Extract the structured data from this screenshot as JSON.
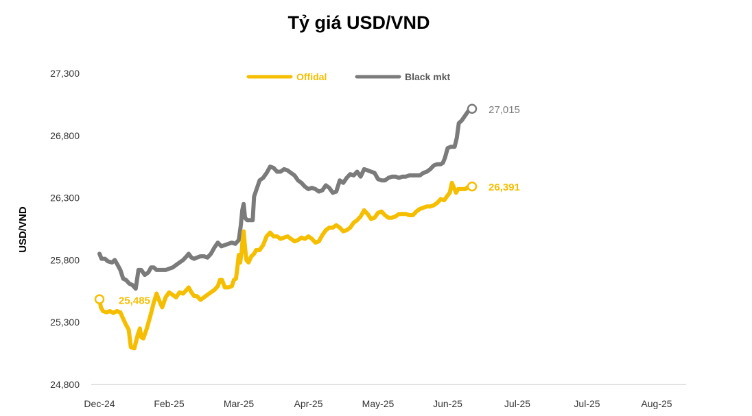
{
  "chart_data": {
    "type": "line",
    "title": "Tỷ giá USD/VND",
    "ylabel": "USD/VND",
    "ylim": [
      24800,
      27300
    ],
    "yticks": [
      "24,800",
      "25,300",
      "25,800",
      "26,300",
      "26,800",
      "27,300"
    ],
    "ytick_values": [
      24800,
      25300,
      25800,
      26300,
      26800,
      27300
    ],
    "xticks": [
      "Dec-24",
      "Feb-25",
      "Mar-25",
      "Apr-25",
      "May-25",
      "Jun-25",
      "Jul-25",
      "Jul-25",
      "Aug-25"
    ],
    "legend_position": "top-center",
    "grid": false,
    "series": [
      {
        "name": "Offidal",
        "color": "#F5BE00",
        "start_label": "25,485",
        "end_label": "26,391",
        "points": [
          [
            0,
            25485
          ],
          [
            0.02,
            25420
          ],
          [
            0.05,
            25390
          ],
          [
            0.1,
            25380
          ],
          [
            0.15,
            25390
          ],
          [
            0.2,
            25375
          ],
          [
            0.25,
            25390
          ],
          [
            0.3,
            25380
          ],
          [
            0.33,
            25340
          ],
          [
            0.38,
            25280
          ],
          [
            0.42,
            25240
          ],
          [
            0.45,
            25100
          ],
          [
            0.5,
            25090
          ],
          [
            0.55,
            25200
          ],
          [
            0.58,
            25250
          ],
          [
            0.6,
            25180
          ],
          [
            0.63,
            25170
          ],
          [
            0.68,
            25250
          ],
          [
            0.73,
            25350
          ],
          [
            0.78,
            25460
          ],
          [
            0.82,
            25530
          ],
          [
            0.86,
            25470
          ],
          [
            0.9,
            25420
          ],
          [
            0.95,
            25500
          ],
          [
            1.0,
            25540
          ],
          [
            1.05,
            25520
          ],
          [
            1.1,
            25500
          ],
          [
            1.15,
            25540
          ],
          [
            1.2,
            25530
          ],
          [
            1.25,
            25560
          ],
          [
            1.28,
            25580
          ],
          [
            1.32,
            25540
          ],
          [
            1.36,
            25510
          ],
          [
            1.4,
            25510
          ],
          [
            1.45,
            25480
          ],
          [
            1.5,
            25500
          ],
          [
            1.55,
            25520
          ],
          [
            1.6,
            25540
          ],
          [
            1.65,
            25560
          ],
          [
            1.7,
            25590
          ],
          [
            1.73,
            25640
          ],
          [
            1.76,
            25640
          ],
          [
            1.8,
            25580
          ],
          [
            1.85,
            25580
          ],
          [
            1.9,
            25590
          ],
          [
            1.93,
            25640
          ],
          [
            1.96,
            25650
          ],
          [
            1.98,
            25740
          ],
          [
            2.0,
            25840
          ],
          [
            2.02,
            25780
          ],
          [
            2.04,
            25860
          ],
          [
            2.05,
            25930
          ],
          [
            2.07,
            26030
          ],
          [
            2.09,
            25900
          ],
          [
            2.11,
            25800
          ],
          [
            2.14,
            25780
          ],
          [
            2.18,
            25830
          ],
          [
            2.22,
            25850
          ],
          [
            2.25,
            25880
          ],
          [
            2.3,
            25880
          ],
          [
            2.35,
            25920
          ],
          [
            2.4,
            25990
          ],
          [
            2.45,
            26020
          ],
          [
            2.5,
            25990
          ],
          [
            2.55,
            25990
          ],
          [
            2.6,
            25970
          ],
          [
            2.65,
            25980
          ],
          [
            2.7,
            25990
          ],
          [
            2.75,
            25970
          ],
          [
            2.8,
            25950
          ],
          [
            2.85,
            25960
          ],
          [
            2.9,
            25980
          ],
          [
            2.95,
            25970
          ],
          [
            3.0,
            25990
          ],
          [
            3.05,
            25970
          ],
          [
            3.1,
            25940
          ],
          [
            3.15,
            25950
          ],
          [
            3.2,
            26000
          ],
          [
            3.25,
            26040
          ],
          [
            3.3,
            26060
          ],
          [
            3.35,
            26060
          ],
          [
            3.4,
            26080
          ],
          [
            3.45,
            26060
          ],
          [
            3.5,
            26030
          ],
          [
            3.55,
            26040
          ],
          [
            3.6,
            26060
          ],
          [
            3.65,
            26100
          ],
          [
            3.7,
            26120
          ],
          [
            3.75,
            26150
          ],
          [
            3.8,
            26200
          ],
          [
            3.85,
            26170
          ],
          [
            3.9,
            26130
          ],
          [
            3.95,
            26140
          ],
          [
            4.0,
            26180
          ],
          [
            4.05,
            26190
          ],
          [
            4.1,
            26160
          ],
          [
            4.15,
            26140
          ],
          [
            4.2,
            26140
          ],
          [
            4.25,
            26150
          ],
          [
            4.3,
            26170
          ],
          [
            4.35,
            26170
          ],
          [
            4.4,
            26170
          ],
          [
            4.45,
            26160
          ],
          [
            4.5,
            26160
          ],
          [
            4.55,
            26190
          ],
          [
            4.6,
            26210
          ],
          [
            4.65,
            26220
          ],
          [
            4.7,
            26230
          ],
          [
            4.75,
            26230
          ],
          [
            4.8,
            26240
          ],
          [
            4.85,
            26260
          ],
          [
            4.9,
            26290
          ],
          [
            4.95,
            26280
          ],
          [
            5.0,
            26320
          ],
          [
            5.03,
            26340
          ],
          [
            5.06,
            26420
          ],
          [
            5.09,
            26380
          ],
          [
            5.12,
            26340
          ],
          [
            5.15,
            26370
          ],
          [
            5.2,
            26370
          ],
          [
            5.25,
            26370
          ],
          [
            5.3,
            26390
          ],
          [
            5.35,
            26391
          ]
        ]
      },
      {
        "name": "Black mkt",
        "color": "#7B7B7B",
        "end_label": "27,015",
        "points": [
          [
            0,
            25850
          ],
          [
            0.03,
            25810
          ],
          [
            0.08,
            25810
          ],
          [
            0.12,
            25790
          ],
          [
            0.18,
            25780
          ],
          [
            0.22,
            25800
          ],
          [
            0.25,
            25770
          ],
          [
            0.3,
            25720
          ],
          [
            0.34,
            25650
          ],
          [
            0.38,
            25640
          ],
          [
            0.43,
            25610
          ],
          [
            0.47,
            25600
          ],
          [
            0.52,
            25570
          ],
          [
            0.56,
            25720
          ],
          [
            0.6,
            25720
          ],
          [
            0.65,
            25680
          ],
          [
            0.7,
            25700
          ],
          [
            0.74,
            25740
          ],
          [
            0.78,
            25740
          ],
          [
            0.82,
            25720
          ],
          [
            0.86,
            25720
          ],
          [
            0.9,
            25720
          ],
          [
            0.95,
            25720
          ],
          [
            1.0,
            25730
          ],
          [
            1.05,
            25740
          ],
          [
            1.1,
            25760
          ],
          [
            1.15,
            25780
          ],
          [
            1.2,
            25800
          ],
          [
            1.25,
            25830
          ],
          [
            1.28,
            25850
          ],
          [
            1.32,
            25820
          ],
          [
            1.36,
            25810
          ],
          [
            1.4,
            25820
          ],
          [
            1.45,
            25830
          ],
          [
            1.5,
            25830
          ],
          [
            1.55,
            25820
          ],
          [
            1.6,
            25850
          ],
          [
            1.65,
            25900
          ],
          [
            1.7,
            25940
          ],
          [
            1.75,
            25910
          ],
          [
            1.8,
            25920
          ],
          [
            1.85,
            25930
          ],
          [
            1.9,
            25940
          ],
          [
            1.95,
            25930
          ],
          [
            2.0,
            25960
          ],
          [
            2.03,
            26080
          ],
          [
            2.05,
            26200
          ],
          [
            2.07,
            26250
          ],
          [
            2.09,
            26140
          ],
          [
            2.12,
            26120
          ],
          [
            2.16,
            26120
          ],
          [
            2.2,
            26120
          ],
          [
            2.22,
            26310
          ],
          [
            2.25,
            26360
          ],
          [
            2.3,
            26440
          ],
          [
            2.35,
            26460
          ],
          [
            2.4,
            26500
          ],
          [
            2.45,
            26550
          ],
          [
            2.5,
            26540
          ],
          [
            2.55,
            26510
          ],
          [
            2.6,
            26510
          ],
          [
            2.65,
            26530
          ],
          [
            2.7,
            26520
          ],
          [
            2.75,
            26500
          ],
          [
            2.8,
            26480
          ],
          [
            2.85,
            26440
          ],
          [
            2.9,
            26420
          ],
          [
            2.95,
            26390
          ],
          [
            3.0,
            26370
          ],
          [
            3.05,
            26380
          ],
          [
            3.1,
            26370
          ],
          [
            3.15,
            26350
          ],
          [
            3.2,
            26360
          ],
          [
            3.25,
            26400
          ],
          [
            3.3,
            26380
          ],
          [
            3.35,
            26340
          ],
          [
            3.4,
            26350
          ],
          [
            3.45,
            26440
          ],
          [
            3.5,
            26420
          ],
          [
            3.55,
            26460
          ],
          [
            3.6,
            26490
          ],
          [
            3.65,
            26480
          ],
          [
            3.7,
            26510
          ],
          [
            3.75,
            26470
          ],
          [
            3.8,
            26530
          ],
          [
            3.85,
            26520
          ],
          [
            3.9,
            26510
          ],
          [
            3.95,
            26500
          ],
          [
            4.0,
            26450
          ],
          [
            4.05,
            26440
          ],
          [
            4.1,
            26440
          ],
          [
            4.15,
            26460
          ],
          [
            4.2,
            26470
          ],
          [
            4.25,
            26470
          ],
          [
            4.3,
            26460
          ],
          [
            4.35,
            26470
          ],
          [
            4.4,
            26470
          ],
          [
            4.45,
            26480
          ],
          [
            4.5,
            26480
          ],
          [
            4.55,
            26480
          ],
          [
            4.6,
            26480
          ],
          [
            4.65,
            26500
          ],
          [
            4.7,
            26510
          ],
          [
            4.75,
            26530
          ],
          [
            4.8,
            26560
          ],
          [
            4.85,
            26570
          ],
          [
            4.9,
            26570
          ],
          [
            4.93,
            26580
          ],
          [
            4.96,
            26620
          ],
          [
            5.0,
            26700
          ],
          [
            5.05,
            26710
          ],
          [
            5.1,
            26710
          ],
          [
            5.13,
            26780
          ],
          [
            5.16,
            26900
          ],
          [
            5.2,
            26920
          ],
          [
            5.25,
            26960
          ],
          [
            5.3,
            27000
          ],
          [
            5.35,
            27015
          ]
        ]
      }
    ]
  }
}
